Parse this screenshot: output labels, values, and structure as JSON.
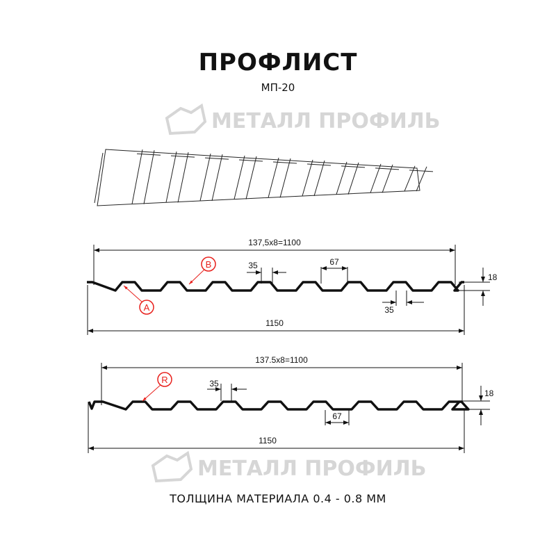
{
  "title": "ПРОФЛИСТ",
  "subtitle": "МП-20",
  "footer": "ТОЛЩИНА МАТЕРИАЛА 0.4 - 0.8 ММ",
  "watermark": "МЕТАЛЛ ПРОФИЛЬ",
  "colors": {
    "profile": "#111111",
    "callout": "#e8201c",
    "watermark": "#d6d6d6"
  },
  "profile1": {
    "pitch_label": "137,5x8=1100",
    "total_label": "1150",
    "top_width_label": "35",
    "bottom_width_label": "67",
    "height_label": "18",
    "bottom_flat_label": "35",
    "callout_a": "A",
    "callout_b": "B"
  },
  "profile2": {
    "pitch_label": "137.5x8=1100",
    "total_label": "1150",
    "top_width_label": "35",
    "bottom_width_label": "67",
    "height_label": "18",
    "callout_r": "R"
  }
}
